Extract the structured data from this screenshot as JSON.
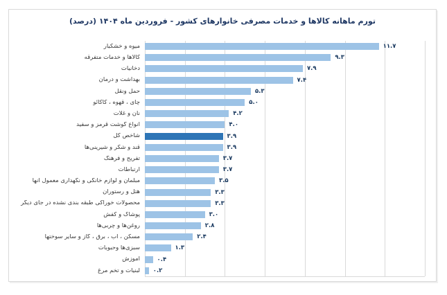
{
  "chart": {
    "title": "تورم ماهانه کالاها و خدمات مصرفی خانوارهای کشور - فروردین ماه ۱۴۰۴ (درصد)",
    "title_color": "#1F3864",
    "border_color": "#D9D9D9",
    "gridline_color": "#D9D9D9",
    "background": "#ffffff"
  },
  "chart_data": {
    "type": "bar",
    "orientation": "horizontal",
    "title": "تورم ماهانه کالاها و خدمات مصرفی خانوارهای کشور - فروردین ماه ۱۴۰۴ (درصد)",
    "xlabel": "",
    "ylabel": "",
    "xlim": [
      0,
      14
    ],
    "gridline_step": 2,
    "grid": true,
    "legend": false,
    "bar_color": "#9DC3E6",
    "highlight_color": "#2E75B6",
    "highlight_index": 8,
    "categories": [
      "میوه و خشکبار",
      "کالاها و خدمات متفرقه",
      "دخانیات",
      "بهداشت و درمان",
      "حمل ونقل",
      "چای ، قهوه ، کاکائو",
      "نان و غلات",
      "انواع گوشت قرمز و سفید",
      "شاخص کل",
      "قند و شکر و شیرینی‌ها",
      "تفریح و فرهنگ",
      "ارتباطات",
      "مبلمان و لوازم خانگی و نگهداری معمول آنها",
      "هتل و رستوران",
      "محصولات خوراکی طبقه بندی نشده در جای دیگر",
      "پوشاک و کفش",
      "روغن‌ها و چربی‌ها",
      "مسکن ، آب ، برق ، گاز و سایر سوختها",
      "سبزی‌ها وحبوبات",
      "آموزش",
      "لبنیات و تخم مرغ"
    ],
    "values": [
      11.7,
      9.3,
      7.9,
      7.4,
      5.3,
      5.0,
      4.2,
      4.0,
      3.9,
      3.9,
      3.7,
      3.7,
      3.5,
      3.3,
      3.3,
      3.0,
      2.8,
      2.4,
      1.3,
      0.4,
      0.2
    ],
    "value_labels": [
      "۱۱.۷",
      "۹.۳",
      "۷.۹",
      "۷.۴",
      "۵.۳",
      "۵.۰",
      "۴.۲",
      "۴.۰",
      "۳.۹",
      "۳.۹",
      "۳.۷",
      "۳.۷",
      "۳.۵",
      "۳.۳",
      "۳.۳",
      "۳.۰",
      "۲.۸",
      "۲.۴",
      "۱.۳",
      "۰.۴",
      "۰.۲"
    ]
  }
}
